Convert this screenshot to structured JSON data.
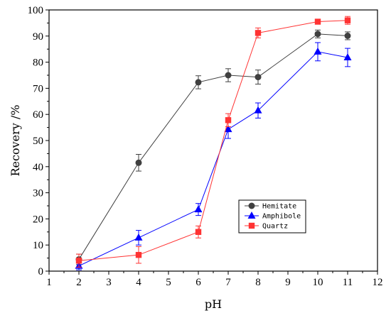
{
  "chart_data": {
    "type": "line",
    "title": "",
    "xlabel": "pH",
    "ylabel": "Recovery /%",
    "xlim": [
      1,
      12
    ],
    "ylim": [
      0,
      100
    ],
    "xticks": [
      1,
      2,
      3,
      4,
      5,
      6,
      7,
      8,
      9,
      10,
      11,
      12
    ],
    "yticks": [
      0,
      10,
      20,
      30,
      40,
      50,
      60,
      70,
      80,
      90,
      100
    ],
    "x_positions_ph": [
      2,
      4,
      6,
      7,
      8,
      10,
      11
    ],
    "legend_position": "lower-right",
    "grid": false,
    "series": [
      {
        "name": "Hemitate",
        "color": "#404040",
        "marker": "circle",
        "values": [
          4.5,
          41.5,
          72.3,
          75.0,
          74.3,
          90.8,
          90.1
        ],
        "errors": [
          2.0,
          3.2,
          2.5,
          2.5,
          2.7,
          1.5,
          1.5
        ]
      },
      {
        "name": "Amphibole",
        "color": "#0000ff",
        "marker": "triangle",
        "values": [
          2.0,
          12.8,
          23.6,
          54.3,
          61.5,
          84.0,
          81.8
        ],
        "errors": [
          1.5,
          2.8,
          2.3,
          3.5,
          2.9,
          3.5,
          3.5
        ]
      },
      {
        "name": "Quartz",
        "color": "#ff3333",
        "marker": "square",
        "values": [
          4.0,
          6.2,
          15.0,
          57.8,
          91.2,
          95.5,
          96.0
        ],
        "errors": [
          2.5,
          3.2,
          2.3,
          2.5,
          1.9,
          0.8,
          1.5
        ]
      }
    ]
  }
}
